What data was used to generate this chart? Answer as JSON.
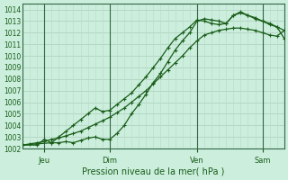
{
  "background_color": "#cceedd",
  "grid_color_major": "#aaccbb",
  "grid_color_minor": "#bbddcc",
  "line_color": "#1a5e1a",
  "xlabel": "Pression niveau de la mer( hPa )",
  "xlabel_fontsize": 7,
  "xlim": [
    0,
    36
  ],
  "ylim": [
    1002,
    1014.5
  ],
  "yticks": [
    1002,
    1003,
    1004,
    1005,
    1006,
    1007,
    1008,
    1009,
    1010,
    1011,
    1012,
    1013,
    1014
  ],
  "xtick_positions": [
    3,
    12,
    24,
    33
  ],
  "xtick_labels": [
    "Jeu",
    "Dim",
    "Ven",
    "Sam"
  ],
  "vline_positions": [
    3,
    12,
    24,
    33
  ],
  "series1_x": [
    0,
    1,
    2,
    3,
    4,
    5,
    6,
    7,
    8,
    9,
    10,
    11,
    12,
    13,
    14,
    15,
    16,
    17,
    18,
    19,
    20,
    21,
    22,
    23,
    24,
    25,
    26,
    27,
    28,
    29,
    30,
    31,
    32,
    33,
    34,
    35,
    36
  ],
  "series1_y": [
    1002.3,
    1002.4,
    1002.5,
    1002.6,
    1002.8,
    1002.9,
    1003.1,
    1003.3,
    1003.5,
    1003.8,
    1004.1,
    1004.4,
    1004.7,
    1005.1,
    1005.5,
    1006.0,
    1006.5,
    1007.0,
    1007.6,
    1008.2,
    1008.8,
    1009.4,
    1010.0,
    1010.7,
    1011.3,
    1011.8,
    1012.0,
    1012.2,
    1012.3,
    1012.4,
    1012.4,
    1012.3,
    1012.2,
    1012.0,
    1011.8,
    1011.7,
    1012.2
  ],
  "series2_x": [
    0,
    2,
    4,
    5,
    6,
    7,
    8,
    9,
    10,
    11,
    12,
    13,
    14,
    15,
    16,
    17,
    18,
    19,
    20,
    21,
    22,
    23,
    24,
    25,
    26,
    27,
    28,
    29,
    30,
    31,
    32,
    33,
    34,
    35,
    36
  ],
  "series2_y": [
    1002.3,
    1002.4,
    1002.5,
    1002.5,
    1002.6,
    1002.5,
    1002.7,
    1002.9,
    1003.0,
    1002.8,
    1002.8,
    1003.3,
    1004.0,
    1005.0,
    1005.8,
    1006.7,
    1007.7,
    1008.5,
    1009.5,
    1010.5,
    1011.3,
    1012.0,
    1013.0,
    1013.2,
    1013.1,
    1013.0,
    1012.8,
    1013.5,
    1013.7,
    1013.5,
    1013.2,
    1013.0,
    1012.8,
    1012.5,
    1011.5
  ],
  "series3_x": [
    0,
    2,
    3,
    4,
    5,
    6,
    7,
    8,
    9,
    10,
    11,
    12,
    13,
    14,
    15,
    16,
    17,
    18,
    19,
    20,
    21,
    22,
    23,
    24,
    25,
    26,
    27,
    28,
    29,
    30,
    31,
    32,
    33,
    34,
    35,
    36
  ],
  "series3_y": [
    1002.3,
    1002.3,
    1002.8,
    1002.5,
    1003.0,
    1003.5,
    1004.0,
    1004.5,
    1005.0,
    1005.5,
    1005.2,
    1005.3,
    1005.8,
    1006.3,
    1006.8,
    1007.5,
    1008.2,
    1009.0,
    1009.8,
    1010.7,
    1011.5,
    1012.0,
    1012.5,
    1013.1,
    1013.0,
    1012.8,
    1012.7,
    1012.8,
    1013.5,
    1013.8,
    1013.5,
    1013.3,
    1013.0,
    1012.7,
    1012.5,
    1012.2
  ]
}
